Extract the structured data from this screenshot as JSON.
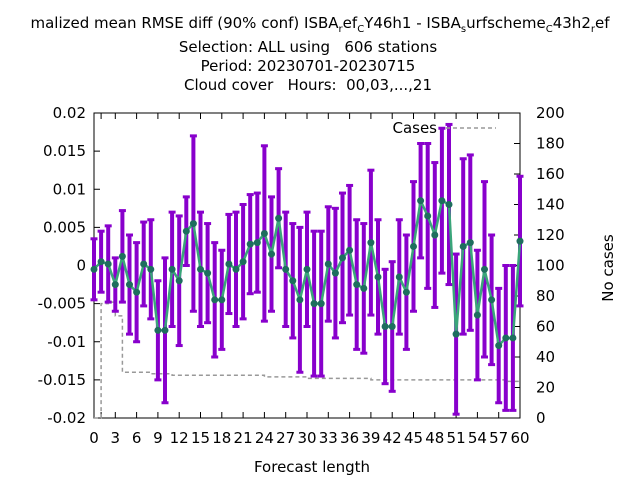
{
  "chart_data": {
    "type": "line",
    "title": {
      "line1": {
        "pre": "malized mean RMSE diff (90% conf) ISBA",
        "sub1": "r",
        "mid1": "ef",
        "sub2": "C",
        "mid2": "Y46h1 - ISBA",
        "sub3": "s",
        "mid3": "urfscheme",
        "sub4": "C",
        "mid4": "43h2",
        "sub5": "r",
        "post": "ef"
      },
      "line2": "Selection: ALL using   606 stations",
      "line3": "Period: 20230701-20230715",
      "line4": "Cloud cover   Hours:  00,03,...,21"
    },
    "xlabel": "Forecast length",
    "ylabel": "",
    "y2label": "No cases",
    "xlim": [
      0,
      60
    ],
    "ylim": [
      -0.02,
      0.02
    ],
    "y2lim": [
      0,
      200
    ],
    "x_ticks": [
      "0",
      "3",
      "6",
      "9",
      "12",
      "15",
      "18",
      "21",
      "24",
      "27",
      "30",
      "33",
      "36",
      "39",
      "42",
      "45",
      "48",
      "51",
      "54",
      "57",
      "60"
    ],
    "x_tick_extra": [
      "1"
    ],
    "y_ticks": [
      "0.02",
      "0.015",
      "0.01",
      "0.005",
      "0",
      "-0.005",
      "-0.01",
      "-0.015",
      "-0.02"
    ],
    "y2_ticks": [
      "200",
      "180",
      "160",
      "140",
      "120",
      "100",
      "80",
      "60",
      "40",
      "20",
      "0"
    ],
    "legend": {
      "label": "Cases",
      "placement": "top-right"
    },
    "colors": {
      "errorbar": "#8800cc",
      "line": "#3aa57a",
      "marker": "#1e6e5e",
      "cases": "#999999"
    },
    "series": [
      {
        "name": "Cases",
        "axis": "y2",
        "x": [
          0,
          1,
          2,
          3,
          4,
          5,
          6,
          7,
          8,
          9,
          10,
          11,
          12,
          13,
          14,
          15,
          16,
          17,
          18,
          19,
          20,
          21,
          22,
          23,
          24,
          25,
          26,
          27,
          28,
          29,
          30,
          31,
          32,
          33,
          34,
          35,
          36,
          37,
          38,
          39,
          40,
          41,
          42,
          43,
          44,
          45,
          46,
          47,
          48,
          49,
          50,
          51,
          52,
          53,
          54,
          55,
          56,
          57,
          58,
          59,
          60
        ],
        "values": [
          0,
          75,
          76,
          67,
          30,
          30,
          30,
          30,
          29,
          29,
          29,
          28,
          28,
          28,
          28,
          28,
          28,
          28,
          28,
          28,
          28,
          28,
          28,
          28,
          27,
          27,
          27,
          27,
          27,
          27,
          26,
          26,
          26,
          26,
          26,
          26,
          26,
          26,
          26,
          25,
          25,
          25,
          25,
          25,
          25,
          25,
          25,
          25,
          25,
          25,
          25,
          25,
          25,
          25,
          25,
          25,
          25,
          25,
          24,
          24,
          24
        ]
      },
      {
        "name": "",
        "axis": "y",
        "x": [
          0,
          1,
          2,
          3,
          4,
          5,
          6,
          7,
          8,
          9,
          10,
          11,
          12,
          13,
          14,
          15,
          16,
          17,
          18,
          19,
          20,
          21,
          22,
          23,
          24,
          25,
          26,
          27,
          28,
          29,
          30,
          31,
          32,
          33,
          34,
          35,
          36,
          37,
          38,
          39,
          40,
          41,
          42,
          43,
          44,
          45,
          46,
          47,
          48,
          49,
          50,
          51,
          52,
          53,
          54,
          55,
          56,
          57,
          58,
          59,
          60
        ],
        "values": [
          -0.0005,
          0.0005,
          0.0002,
          -0.0025,
          0.0012,
          -0.0025,
          -0.0035,
          0.0002,
          -0.0005,
          -0.0085,
          -0.0085,
          -0.0005,
          -0.002,
          0.0045,
          0.0055,
          -0.0005,
          -0.001,
          -0.0045,
          -0.0045,
          0.0002,
          -0.0005,
          0.0005,
          0.0028,
          0.003,
          0.0042,
          0.0015,
          0.0062,
          -0.0005,
          -0.002,
          -0.0045,
          -0.0005,
          -0.005,
          -0.005,
          0.0002,
          -0.001,
          0.001,
          0.002,
          -0.0025,
          -0.003,
          0.003,
          -0.0015,
          -0.008,
          -0.008,
          -0.0015,
          -0.0035,
          0.0025,
          0.0085,
          0.0065,
          0.004,
          0.0085,
          0.008,
          -0.009,
          0.0025,
          0.003,
          -0.0065,
          -0.0005,
          -0.0045,
          -0.0105,
          -0.0095,
          -0.0095,
          0.0032
        ],
        "errors": [
          0.004,
          0.004,
          0.005,
          0.0035,
          0.006,
          0.0065,
          0.0065,
          0.0055,
          0.0065,
          0.0065,
          0.0095,
          0.0075,
          0.0085,
          0.0045,
          0.0115,
          0.0075,
          0.0065,
          0.0075,
          0.0065,
          0.0065,
          0.0075,
          0.0075,
          0.0065,
          0.0065,
          0.0115,
          0.0075,
          0.0065,
          0.0075,
          0.0075,
          0.0095,
          0.0075,
          0.0095,
          0.0095,
          0.0075,
          0.0085,
          0.0085,
          0.0085,
          0.0085,
          0.0085,
          0.0095,
          0.0075,
          0.0075,
          0.0085,
          0.0075,
          0.0075,
          0.0085,
          0.0075,
          0.0095,
          0.0095,
          0.0095,
          0.0105,
          0.0105,
          0.0115,
          0.0115,
          0.0085,
          0.0115,
          0.0085,
          0.0075,
          0.0095,
          0.0095,
          0.0085
        ]
      }
    ],
    "grid": false
  }
}
